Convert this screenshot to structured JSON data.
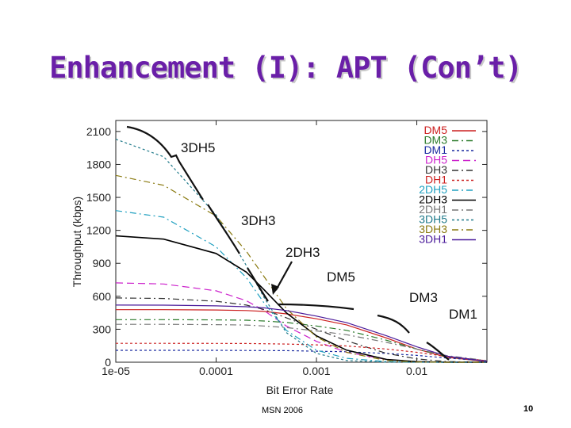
{
  "slide": {
    "title": "Enhancement (I): APT (Con’t)",
    "footer": "MSN 2006",
    "page_number": "10"
  },
  "chart_data": {
    "type": "line",
    "xlabel": "Bit Error Rate",
    "ylabel": "Throughput (kbps)",
    "x_scale": "log",
    "xlim": [
      1e-05,
      0.05
    ],
    "ylim": [
      0,
      2200
    ],
    "x_ticks": [
      "1e-05",
      "0.0001",
      "0.001",
      "0.01"
    ],
    "x_tick_values": [
      1e-05,
      0.0001,
      0.001,
      0.01
    ],
    "y_ticks": [
      "0",
      "300",
      "600",
      "900",
      "1200",
      "1500",
      "1800",
      "2100"
    ],
    "y_tick_values": [
      0,
      300,
      600,
      900,
      1200,
      1500,
      1800,
      2100
    ],
    "legend_position": "top-right",
    "annotations": [
      "3DH5",
      "3DH3",
      "2DH3",
      "DM5",
      "DM3",
      "DM1"
    ],
    "x": [
      1e-05,
      3e-05,
      0.0001,
      0.0002,
      0.0003,
      0.0005,
      0.001,
      0.002,
      0.005,
      0.01,
      0.02,
      0.05
    ],
    "series": [
      {
        "name": "DM5",
        "color": "#cc2020",
        "dash": "",
        "values": [
          478,
          478,
          475,
          470,
          462,
          440,
          395,
          340,
          220,
          120,
          45,
          5
        ]
      },
      {
        "name": "DM3",
        "color": "#2a7a2a",
        "dash": "8,4,2,4",
        "values": [
          387,
          387,
          385,
          382,
          375,
          362,
          330,
          290,
          200,
          120,
          50,
          8
        ]
      },
      {
        "name": "DM1",
        "color": "#1a2aa0",
        "dash": "3,3",
        "values": [
          108,
          108,
          108,
          107,
          106,
          105,
          100,
          95,
          80,
          62,
          38,
          12
        ]
      },
      {
        "name": "DH5",
        "color": "#cc22cc",
        "dash": "9,5",
        "values": [
          722,
          712,
          650,
          560,
          470,
          330,
          190,
          90,
          25,
          5,
          1,
          0
        ]
      },
      {
        "name": "DH3",
        "color": "#333333",
        "dash": "8,4,2,4",
        "values": [
          585,
          580,
          555,
          520,
          480,
          405,
          300,
          195,
          80,
          30,
          6,
          0
        ]
      },
      {
        "name": "DH1",
        "color": "#cc2020",
        "dash": "3,3",
        "values": [
          172,
          172,
          171,
          170,
          168,
          165,
          158,
          148,
          120,
          90,
          52,
          14
        ]
      },
      {
        "name": "2DH5",
        "color": "#20a0c0",
        "dash": "8,4,2,4",
        "values": [
          1380,
          1320,
          1050,
          770,
          540,
          290,
          110,
          35,
          5,
          1,
          0,
          0
        ]
      },
      {
        "name": "2DH3",
        "color": "#000000",
        "dash": "",
        "values": [
          1150,
          1120,
          990,
          820,
          660,
          450,
          240,
          110,
          25,
          5,
          0,
          0
        ]
      },
      {
        "name": "2DH1",
        "color": "#777777",
        "dash": "8,4,2,4",
        "values": [
          345,
          345,
          342,
          338,
          330,
          315,
          285,
          250,
          180,
          120,
          60,
          15
        ]
      },
      {
        "name": "3DH5",
        "color": "#207a8a",
        "dash": "3,3",
        "values": [
          2030,
          1870,
          1340,
          880,
          590,
          270,
          80,
          15,
          1,
          0,
          0,
          0
        ]
      },
      {
        "name": "3DH3",
        "color": "#8a7a10",
        "dash": "8,4,2,4",
        "values": [
          1700,
          1610,
          1330,
          1010,
          780,
          490,
          230,
          90,
          15,
          2,
          0,
          0
        ]
      },
      {
        "name": "3DH1",
        "color": "#4a1a9a",
        "dash": "",
        "values": [
          520,
          519,
          513,
          505,
          495,
          470,
          420,
          360,
          240,
          140,
          55,
          8
        ]
      }
    ]
  }
}
